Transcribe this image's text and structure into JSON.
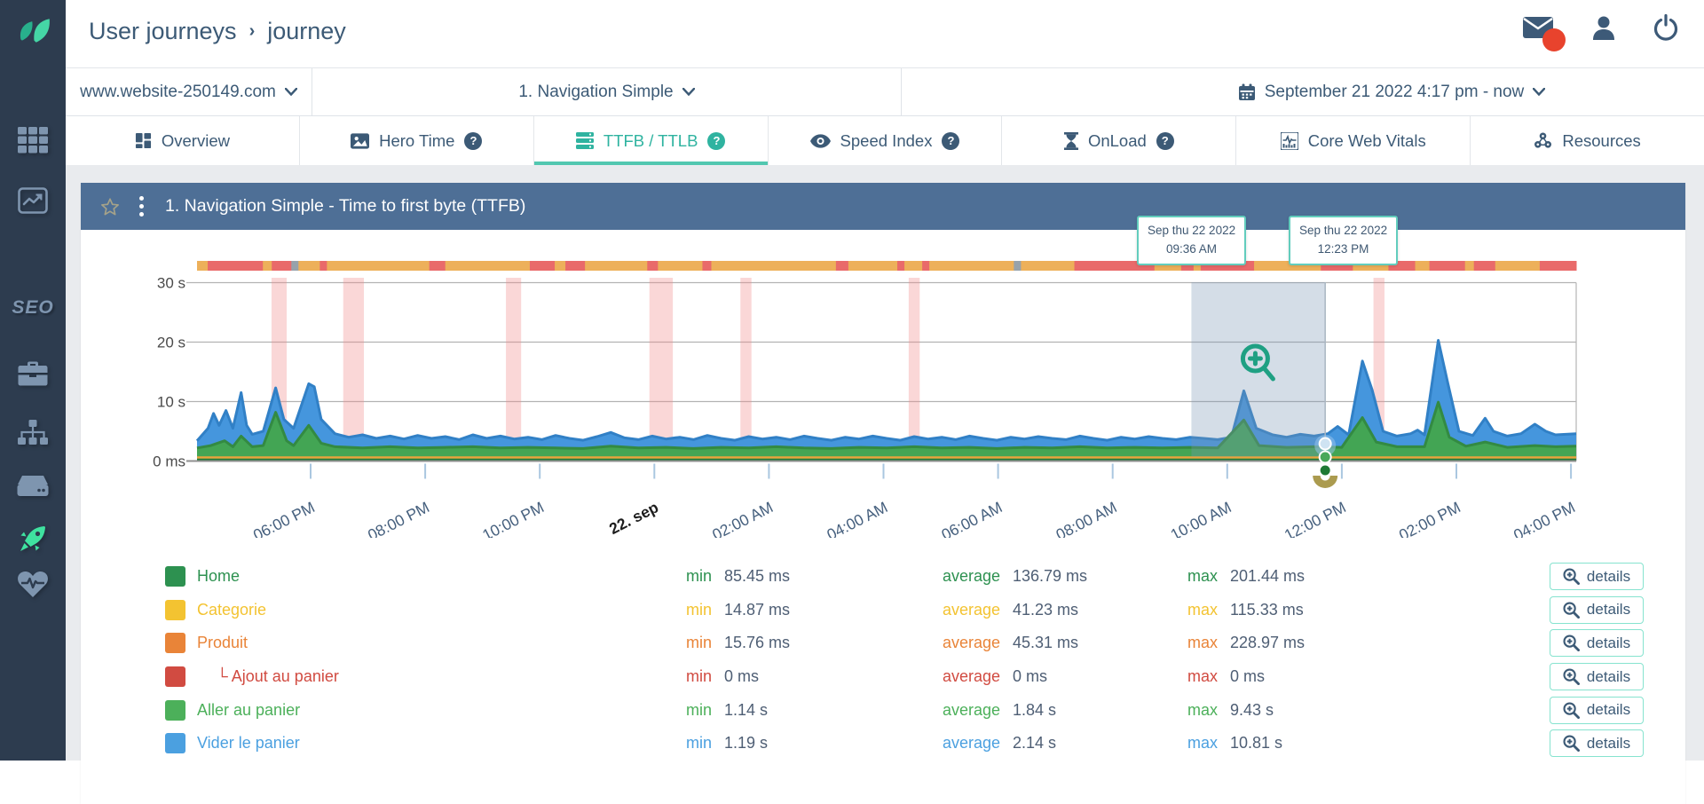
{
  "header": {
    "breadcrumb_primary": "User journeys",
    "breadcrumb_separator": "›",
    "breadcrumb_current": "journey"
  },
  "selectors": {
    "site": "www.website-250149.com",
    "scenario": "1. Navigation Simple",
    "daterange": "September 21 2022 4:17 pm - now"
  },
  "tabs": [
    {
      "label": "Overview",
      "icon": "overview-icon",
      "active": false,
      "help": false
    },
    {
      "label": "Hero Time",
      "icon": "hero-time-icon",
      "active": false,
      "help": true
    },
    {
      "label": "TTFB / TTLB",
      "icon": "server-icon",
      "active": true,
      "help": true
    },
    {
      "label": "Speed Index",
      "icon": "eye-icon",
      "active": false,
      "help": true
    },
    {
      "label": "OnLoad",
      "icon": "hourglass-icon",
      "active": false,
      "help": true
    },
    {
      "label": "Core Web Vitals",
      "icon": "vitals-icon",
      "active": false,
      "help": false
    },
    {
      "label": "Resources",
      "icon": "resources-icon",
      "active": false,
      "help": false
    }
  ],
  "panel": {
    "title": "1. Navigation Simple - Time to first byte (TTFB)"
  },
  "tooltips": [
    {
      "line1": "Sep thu 22 2022",
      "line2": "09:36 AM"
    },
    {
      "line1": "Sep thu 22 2022",
      "line2": "12:23 PM"
    }
  ],
  "chart_data": {
    "type": "area",
    "title": "1. Navigation Simple - Time to first byte (TTFB)",
    "ylabel": "",
    "ylim_seconds": [
      0,
      32
    ],
    "yticks": [
      {
        "label": "0 ms",
        "value": 0
      },
      {
        "label": "10 s",
        "value": 10
      },
      {
        "label": "20 s",
        "value": 20
      },
      {
        "label": "30 s",
        "value": 30
      }
    ],
    "xticks": [
      "06:00 PM",
      "08:00 PM",
      "10:00 PM",
      "22. sep",
      "02:00 AM",
      "04:00 AM",
      "06:00 AM",
      "08:00 AM",
      "10:00 AM",
      "12:00 PM",
      "02:00 PM",
      "04:00 PM"
    ],
    "xtick_emphasis_index": 3,
    "grid": true,
    "series": [
      {
        "name": "ttlb-blue",
        "color": "#4596dd",
        "edge": "#3180c6",
        "points": [
          [
            0,
            3.4
          ],
          [
            0.008,
            5.5
          ],
          [
            0.012,
            8
          ],
          [
            0.016,
            6
          ],
          [
            0.021,
            8.5
          ],
          [
            0.026,
            5.5
          ],
          [
            0.032,
            11.5
          ],
          [
            0.036,
            6
          ],
          [
            0.04,
            4.5
          ],
          [
            0.048,
            5
          ],
          [
            0.057,
            12.3
          ],
          [
            0.063,
            7
          ],
          [
            0.07,
            5.5
          ],
          [
            0.081,
            13
          ],
          [
            0.085,
            12.5
          ],
          [
            0.09,
            7
          ],
          [
            0.1,
            4.6
          ],
          [
            0.11,
            4
          ],
          [
            0.12,
            4.4
          ],
          [
            0.13,
            3.8
          ],
          [
            0.14,
            4.2
          ],
          [
            0.15,
            3.7
          ],
          [
            0.16,
            4.3
          ],
          [
            0.17,
            3.8
          ],
          [
            0.18,
            4.1
          ],
          [
            0.19,
            3.6
          ],
          [
            0.2,
            4.4
          ],
          [
            0.21,
            3.8
          ],
          [
            0.22,
            4.2
          ],
          [
            0.23,
            3.7
          ],
          [
            0.24,
            4
          ],
          [
            0.25,
            3.6
          ],
          [
            0.26,
            4.3
          ],
          [
            0.27,
            3.8
          ],
          [
            0.28,
            3.5
          ],
          [
            0.29,
            4.1
          ],
          [
            0.3,
            4.8
          ],
          [
            0.31,
            3.9
          ],
          [
            0.32,
            3.6
          ],
          [
            0.33,
            4.2
          ],
          [
            0.34,
            3.7
          ],
          [
            0.35,
            4
          ],
          [
            0.36,
            3.6
          ],
          [
            0.37,
            4.3
          ],
          [
            0.38,
            3.8
          ],
          [
            0.39,
            3.5
          ],
          [
            0.4,
            4.1
          ],
          [
            0.41,
            3.7
          ],
          [
            0.42,
            4
          ],
          [
            0.43,
            3.6
          ],
          [
            0.44,
            4.2
          ],
          [
            0.45,
            3.8
          ],
          [
            0.46,
            3.5
          ],
          [
            0.47,
            4
          ],
          [
            0.48,
            3.7
          ],
          [
            0.49,
            4.2
          ],
          [
            0.5,
            3.8
          ],
          [
            0.51,
            3.5
          ],
          [
            0.52,
            4.1
          ],
          [
            0.53,
            3.7
          ],
          [
            0.54,
            4
          ],
          [
            0.55,
            3.6
          ],
          [
            0.56,
            4.2
          ],
          [
            0.57,
            3.8
          ],
          [
            0.58,
            3.5
          ],
          [
            0.59,
            4
          ],
          [
            0.6,
            3.7
          ],
          [
            0.61,
            4.1
          ],
          [
            0.62,
            3.8
          ],
          [
            0.63,
            3.6
          ],
          [
            0.64,
            4.2
          ],
          [
            0.65,
            3.8
          ],
          [
            0.66,
            3.5
          ],
          [
            0.67,
            4
          ],
          [
            0.68,
            3.7
          ],
          [
            0.69,
            4.1
          ],
          [
            0.7,
            3.8
          ],
          [
            0.71,
            3.6
          ],
          [
            0.72,
            4
          ],
          [
            0.73,
            3.8
          ],
          [
            0.74,
            3.6
          ],
          [
            0.75,
            4
          ],
          [
            0.759,
            11.8
          ],
          [
            0.768,
            5.5
          ],
          [
            0.78,
            4.4
          ],
          [
            0.79,
            4
          ],
          [
            0.8,
            4.5
          ],
          [
            0.81,
            4.2
          ],
          [
            0.82,
            4.6
          ],
          [
            0.827,
            5.8
          ],
          [
            0.835,
            4.4
          ],
          [
            0.845,
            16.8
          ],
          [
            0.852,
            12
          ],
          [
            0.86,
            5
          ],
          [
            0.87,
            4.2
          ],
          [
            0.88,
            4.6
          ],
          [
            0.885,
            5.2
          ],
          [
            0.89,
            4.4
          ],
          [
            0.9,
            20.3
          ],
          [
            0.907,
            13
          ],
          [
            0.915,
            5
          ],
          [
            0.925,
            4.3
          ],
          [
            0.934,
            7.2
          ],
          [
            0.94,
            5
          ],
          [
            0.95,
            4.2
          ],
          [
            0.96,
            4.6
          ],
          [
            0.97,
            6.2
          ],
          [
            0.978,
            5
          ],
          [
            0.985,
            4.4
          ],
          [
            1,
            4.6
          ]
        ]
      },
      {
        "name": "ttfb-green",
        "color": "#43a554",
        "edge": "#338a42",
        "points": [
          [
            0,
            2.2
          ],
          [
            0.01,
            2.6
          ],
          [
            0.02,
            3.4
          ],
          [
            0.026,
            2.4
          ],
          [
            0.032,
            4.2
          ],
          [
            0.04,
            2.4
          ],
          [
            0.048,
            2.6
          ],
          [
            0.057,
            8.2
          ],
          [
            0.065,
            3.4
          ],
          [
            0.07,
            2.6
          ],
          [
            0.081,
            6
          ],
          [
            0.09,
            3
          ],
          [
            0.1,
            2.4
          ],
          [
            0.12,
            2.2
          ],
          [
            0.14,
            2.4
          ],
          [
            0.16,
            2.2
          ],
          [
            0.18,
            2.3
          ],
          [
            0.2,
            2.4
          ],
          [
            0.22,
            2.2
          ],
          [
            0.24,
            2.3
          ],
          [
            0.26,
            2.2
          ],
          [
            0.28,
            2.1
          ],
          [
            0.3,
            2.5
          ],
          [
            0.32,
            2.2
          ],
          [
            0.34,
            2.3
          ],
          [
            0.36,
            2.1
          ],
          [
            0.38,
            2.3
          ],
          [
            0.4,
            2.2
          ],
          [
            0.42,
            2.4
          ],
          [
            0.44,
            2.2
          ],
          [
            0.46,
            2.1
          ],
          [
            0.48,
            2.3
          ],
          [
            0.5,
            2.2
          ],
          [
            0.52,
            2.4
          ],
          [
            0.54,
            2.2
          ],
          [
            0.56,
            2.3
          ],
          [
            0.58,
            2.1
          ],
          [
            0.6,
            2.3
          ],
          [
            0.62,
            2.2
          ],
          [
            0.64,
            2.4
          ],
          [
            0.66,
            2.2
          ],
          [
            0.68,
            2.3
          ],
          [
            0.7,
            2.2
          ],
          [
            0.72,
            2.3
          ],
          [
            0.74,
            2.2
          ],
          [
            0.759,
            6.9
          ],
          [
            0.77,
            2.6
          ],
          [
            0.79,
            2.3
          ],
          [
            0.81,
            2.4
          ],
          [
            0.83,
            2.3
          ],
          [
            0.845,
            7.3
          ],
          [
            0.855,
            3.2
          ],
          [
            0.87,
            2.4
          ],
          [
            0.89,
            2.4
          ],
          [
            0.9,
            9.9
          ],
          [
            0.908,
            4
          ],
          [
            0.92,
            2.5
          ],
          [
            0.934,
            3.2
          ],
          [
            0.95,
            2.3
          ],
          [
            0.97,
            2.6
          ],
          [
            0.985,
            2.4
          ],
          [
            1,
            2.5
          ]
        ]
      }
    ],
    "baseline_accents": [
      {
        "name": "categorie-orange-line",
        "color": "#e8a33d",
        "seconds": 0.6
      },
      {
        "name": "home-darkgreen-line",
        "color": "#1e7a34",
        "seconds": 0.2
      }
    ],
    "status_strip": {
      "colors": {
        "o": "#edb05a",
        "r": "#e96a6a",
        "g": "#97a2ab"
      },
      "segments": [
        [
          "o",
          12
        ],
        [
          "r",
          62
        ],
        [
          "o",
          10
        ],
        [
          "r",
          22
        ],
        [
          "g",
          8
        ],
        [
          "o",
          24
        ],
        [
          "r",
          8
        ],
        [
          "o",
          115
        ],
        [
          "r",
          18
        ],
        [
          "o",
          95
        ],
        [
          "r",
          28
        ],
        [
          "o",
          12
        ],
        [
          "r",
          22
        ],
        [
          "o",
          70
        ],
        [
          "r",
          12
        ],
        [
          "o",
          50
        ],
        [
          "r",
          10
        ],
        [
          "o",
          140
        ],
        [
          "r",
          14
        ],
        [
          "o",
          55
        ],
        [
          "r",
          8
        ],
        [
          "o",
          20
        ],
        [
          "r",
          8
        ],
        [
          "o",
          95
        ],
        [
          "g",
          8
        ],
        [
          "o",
          60
        ],
        [
          "r",
          90
        ],
        [
          "o",
          30
        ],
        [
          "r",
          14
        ],
        [
          "o",
          8
        ],
        [
          "r",
          60
        ],
        [
          "o",
          75
        ],
        [
          "r",
          36
        ],
        [
          "o",
          40
        ],
        [
          "r",
          30
        ],
        [
          "o",
          16
        ],
        [
          "r",
          40
        ],
        [
          "o",
          10
        ],
        [
          "r",
          24
        ],
        [
          "o",
          50
        ],
        [
          "r",
          41
        ]
      ]
    },
    "incident_bands_frac": [
      {
        "x": 0.054,
        "w": 0.011
      },
      {
        "x": 0.106,
        "w": 0.015
      },
      {
        "x": 0.224,
        "w": 0.011
      },
      {
        "x": 0.328,
        "w": 0.017
      },
      {
        "x": 0.394,
        "w": 0.008
      },
      {
        "x": 0.516,
        "w": 0.008
      },
      {
        "x": 0.853,
        "w": 0.008
      }
    ],
    "selection": {
      "from_frac": 0.721,
      "to_frac": 0.818,
      "from_label": "Sep thu 22 2022 09:36 AM",
      "to_label": "Sep thu 22 2022 12:23 PM"
    },
    "legend_position": "bottom"
  },
  "legend": {
    "labels": {
      "min": "min",
      "average": "average",
      "max": "max"
    },
    "details_label": "details",
    "rows": [
      {
        "name": "Home",
        "color": "#2d9150",
        "indent": false,
        "min": "85.45 ms",
        "average": "136.79 ms",
        "max": "201.44 ms"
      },
      {
        "name": "Categorie",
        "color": "#f3c331",
        "indent": false,
        "min": "14.87 ms",
        "average": "41.23 ms",
        "max": "115.33 ms"
      },
      {
        "name": "Produit",
        "color": "#e98438",
        "indent": false,
        "min": "15.76 ms",
        "average": "45.31 ms",
        "max": "228.97 ms"
      },
      {
        "name": "Ajout au panier",
        "color": "#d14b41",
        "indent": true,
        "min": "0 ms",
        "average": "0 ms",
        "max": "0 ms"
      },
      {
        "name": "Aller au panier",
        "color": "#4cb05a",
        "indent": false,
        "min": "1.14 s",
        "average": "1.84 s",
        "max": "9.43 s"
      },
      {
        "name": "Vider le panier",
        "color": "#4ba0e0",
        "indent": false,
        "min": "1.19 s",
        "average": "2.14 s",
        "max": "10.81 s"
      }
    ]
  },
  "sidebar": {
    "items": [
      {
        "icon": "apps-grid-icon",
        "active": false
      },
      {
        "icon": "analytics-icon",
        "active": false
      },
      {
        "icon": "seo-label",
        "active": false
      },
      {
        "icon": "toolbox-icon",
        "active": false
      },
      {
        "icon": "sitemap-icon",
        "active": false
      },
      {
        "icon": "server-drive-icon",
        "active": false
      },
      {
        "icon": "rocket-icon",
        "active": true
      },
      {
        "icon": "health-icon",
        "active": false
      }
    ]
  },
  "colors": {
    "accent_teal": "#2fb3a0",
    "panel_header": "#4e6f96",
    "sidebar_bg": "#2d3c4f",
    "text_slate": "#3c5a76",
    "alert_red": "#e8432d",
    "selection_fill": "rgba(120,150,180,0.32)",
    "incident_pink": "rgba(240,140,140,0.35)"
  }
}
